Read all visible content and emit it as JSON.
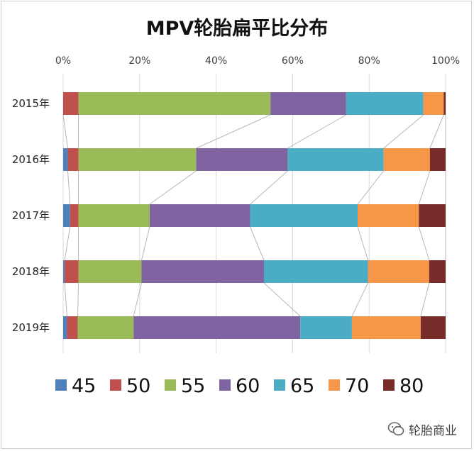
{
  "chart_data": {
    "type": "bar",
    "orientation": "horizontal",
    "stacked": "percent",
    "title": "MPV轮胎扁平比分布",
    "categories": [
      "2015年",
      "2016年",
      "2017年",
      "2018年",
      "2019年"
    ],
    "x_ticks": [
      "0%",
      "20%",
      "40%",
      "60%",
      "80%",
      "100%"
    ],
    "xlim": [
      0,
      100
    ],
    "series_lines": true,
    "legend_position": "bottom",
    "series": [
      {
        "name": "45",
        "color": "#4f81bd",
        "values": [
          0.0,
          1.2,
          1.8,
          0.4,
          1.0
        ]
      },
      {
        "name": "50",
        "color": "#c0504d",
        "values": [
          4.0,
          2.8,
          2.2,
          3.6,
          2.8
        ]
      },
      {
        "name": "55",
        "color": "#9bbb59",
        "values": [
          50.2,
          30.8,
          18.6,
          16.5,
          14.6
        ]
      },
      {
        "name": "60",
        "color": "#8064a2",
        "values": [
          19.8,
          23.9,
          26.3,
          32.0,
          43.6
        ]
      },
      {
        "name": "65",
        "color": "#4bacc6",
        "values": [
          20.2,
          25.1,
          28.1,
          27.2,
          13.5
        ]
      },
      {
        "name": "70",
        "color": "#f79646",
        "values": [
          5.3,
          12.1,
          16.0,
          16.0,
          18.0
        ]
      },
      {
        "name": "80",
        "color": "#772c2a",
        "values": [
          0.5,
          4.1,
          7.0,
          4.3,
          6.5
        ]
      }
    ]
  },
  "watermark": {
    "text": "轮胎商业",
    "icon": "wechat-icon"
  }
}
